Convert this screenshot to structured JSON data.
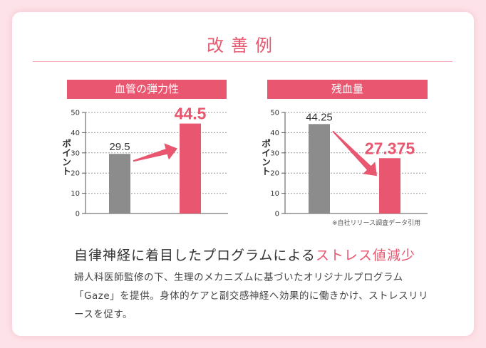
{
  "page": {
    "title": "改善例",
    "headline_plain": "自律神経に着目したプログラムによる",
    "headline_accent": "ストレス値減少",
    "body": "婦人科医師監修の下、生理のメカニズムに基づいたオリジナルプログラム「Gaze」を提供。身体的ケアと副交感神経へ効果的に働きかけ、ストレスリリースを促す。",
    "source_note": "※自社リリース調査データ引用",
    "colors": {
      "accent": "#e8566f",
      "gray_bar": "#8c8c8c",
      "background": "#fde3e9"
    }
  },
  "chart_data": [
    {
      "type": "bar",
      "title": "血管の弾力性",
      "ylabel": "ポイント",
      "ylim": [
        0,
        50
      ],
      "yticks": [
        0,
        10,
        20,
        30,
        40,
        50
      ],
      "categories": [
        "",
        ""
      ],
      "values": [
        29.5,
        44.5
      ],
      "value_labels": [
        "29.5",
        "44.5"
      ],
      "bar_colors": [
        "#8c8c8c",
        "#e8566f"
      ],
      "trend": "up"
    },
    {
      "type": "bar",
      "title": "残血量",
      "ylabel": "ポイント",
      "ylim": [
        0,
        50
      ],
      "yticks": [
        0,
        10,
        20,
        30,
        40,
        50
      ],
      "categories": [
        "",
        ""
      ],
      "values": [
        44.25,
        27.375
      ],
      "value_labels": [
        "44.25",
        "27.375"
      ],
      "bar_colors": [
        "#8c8c8c",
        "#e8566f"
      ],
      "trend": "down"
    }
  ]
}
